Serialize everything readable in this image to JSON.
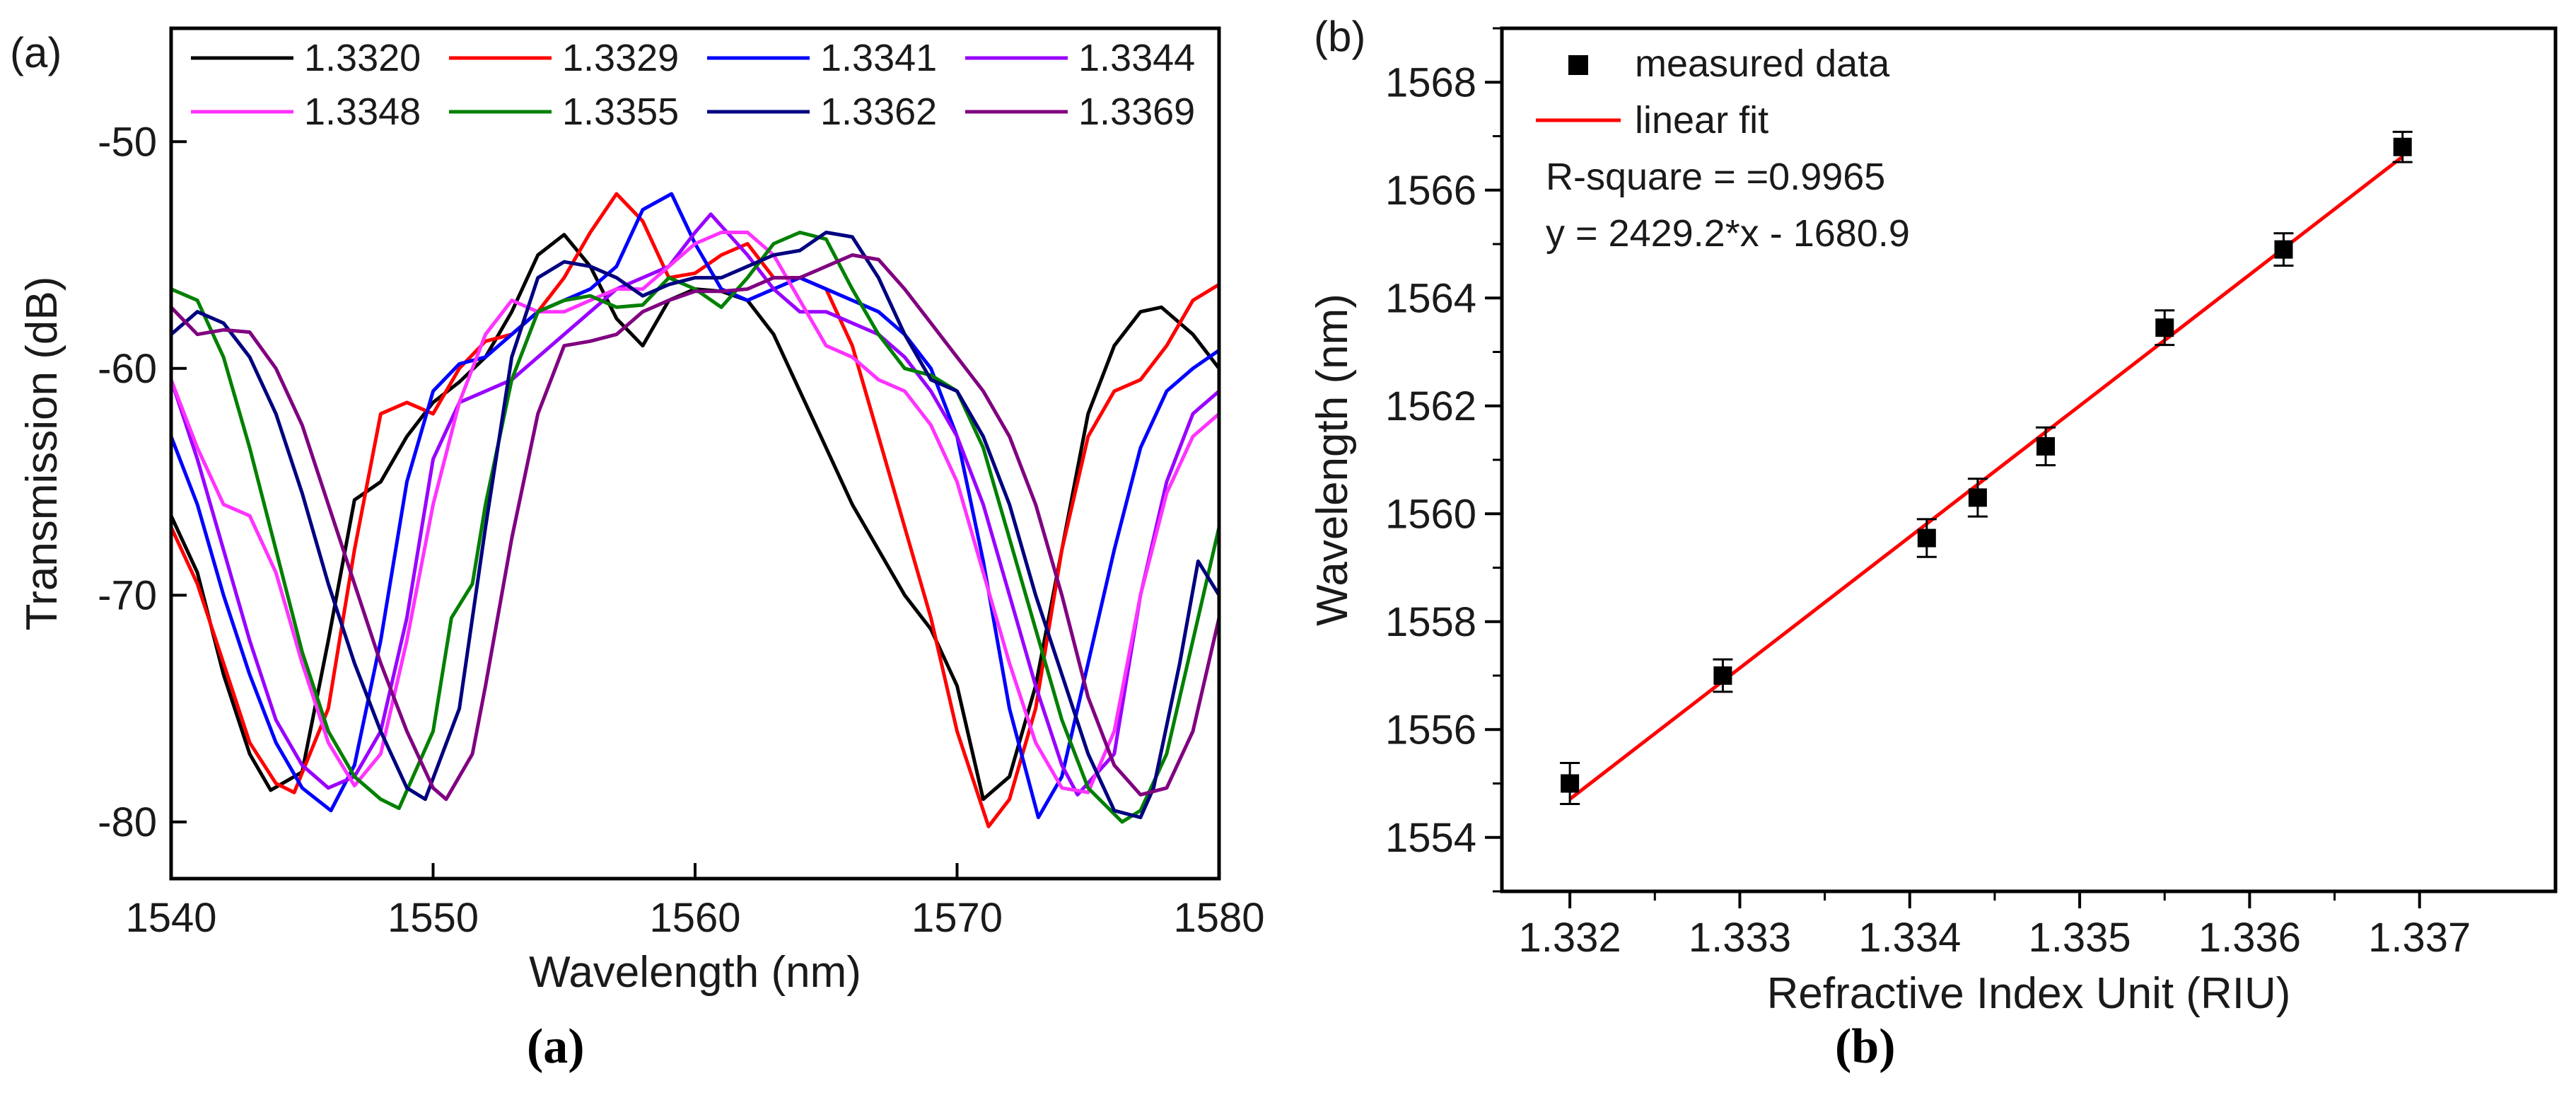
{
  "chart_data": [
    {
      "id": "a",
      "type": "line",
      "panel_label": "(a)",
      "title": "",
      "xlabel": "Wavelength (nm)",
      "ylabel": "Transmission (dB)",
      "xlim": [
        1540,
        1580
      ],
      "ylim": [
        -82.5,
        -45
      ],
      "xticks": [
        1540,
        1550,
        1560,
        1570,
        1580
      ],
      "yticks": [
        -80,
        -70,
        -60,
        -50
      ],
      "x_tick_labels": [
        "1540",
        "1550",
        "1560",
        "1570",
        "1580"
      ],
      "y_tick_labels": [
        "-80",
        "-70",
        "-60",
        "-50"
      ],
      "grid": false,
      "legend": "top, 4 columns",
      "series": [
        {
          "name": "1.3320",
          "color": "#000000",
          "x": [
            1540,
            1541,
            1542,
            1543,
            1543.8,
            1545,
            1546,
            1547,
            1548,
            1549,
            1550,
            1551,
            1552,
            1553,
            1554,
            1555,
            1556,
            1557,
            1558,
            1559,
            1560,
            1561,
            1562,
            1563,
            1564,
            1565,
            1566,
            1567,
            1568,
            1569,
            1570,
            1571,
            1572,
            1573,
            1574,
            1575,
            1576,
            1577,
            1577.8,
            1579,
            1580
          ],
          "y": [
            -66.5,
            -69,
            -73.5,
            -77,
            -78.6,
            -77.8,
            -72,
            -65.8,
            -65,
            -63,
            -61.5,
            -60.6,
            -59.5,
            -57.5,
            -55,
            -54.1,
            -55.5,
            -57.8,
            -59,
            -57,
            -56.5,
            -56.6,
            -57,
            -58.5,
            -61,
            -63.5,
            -66,
            -68,
            -70,
            -71.5,
            -74,
            -79,
            -78,
            -74,
            -68,
            -62,
            -59,
            -57.5,
            -57.3,
            -58.5,
            -60
          ]
        },
        {
          "name": "1.3329",
          "color": "#ff0000",
          "x": [
            1540,
            1541,
            1542,
            1543,
            1544,
            1544.7,
            1546,
            1547,
            1548,
            1549,
            1550,
            1551,
            1552,
            1553,
            1554,
            1555,
            1556,
            1557,
            1558,
            1559,
            1560,
            1561,
            1562,
            1563,
            1564,
            1565,
            1566,
            1567,
            1568,
            1569,
            1570,
            1571.2,
            1572,
            1573,
            1574,
            1575,
            1576,
            1577,
            1578,
            1579,
            1580
          ],
          "y": [
            -67,
            -69.5,
            -73,
            -76.5,
            -78.3,
            -78.7,
            -75,
            -68,
            -62,
            -61.5,
            -62,
            -60,
            -58.8,
            -58.5,
            -57.5,
            -56,
            -54,
            -52.3,
            -53.5,
            -56,
            -55.8,
            -55,
            -54.5,
            -56,
            -56,
            -56.5,
            -59,
            -63,
            -67,
            -71,
            -76,
            -80.2,
            -79,
            -75,
            -68,
            -63,
            -61,
            -60.5,
            -59,
            -57,
            -56.3
          ]
        },
        {
          "name": "1.3341",
          "color": "#0000ff",
          "x": [
            1540,
            1541,
            1542,
            1543,
            1544,
            1545,
            1546.1,
            1547,
            1548,
            1549,
            1550,
            1551,
            1552,
            1553,
            1554,
            1555,
            1556,
            1557,
            1558,
            1559.1,
            1560,
            1561,
            1562,
            1563,
            1564,
            1565,
            1566,
            1567,
            1568,
            1569,
            1570,
            1571,
            1572,
            1573.1,
            1574,
            1575,
            1576,
            1577,
            1578,
            1579,
            1580
          ],
          "y": [
            -63,
            -66,
            -70,
            -73.5,
            -76.5,
            -78.5,
            -79.5,
            -77.5,
            -72,
            -65,
            -61,
            -59.8,
            -59.5,
            -58.5,
            -57.5,
            -57,
            -56.5,
            -55.5,
            -53,
            -52.3,
            -54.5,
            -56.5,
            -57,
            -56.5,
            -56,
            -56.5,
            -57,
            -57.5,
            -58.5,
            -60,
            -63,
            -68.5,
            -75,
            -79.8,
            -78,
            -73,
            -68,
            -63.5,
            -61,
            -60,
            -59.2
          ]
        },
        {
          "name": "1.3344",
          "color": "#9900ff",
          "x": [
            1540,
            1541,
            1542,
            1543,
            1544,
            1545,
            1546,
            1547,
            1548,
            1549,
            1550,
            1551,
            1552,
            1553,
            1554,
            1555,
            1556,
            1557,
            1558,
            1559,
            1560,
            1560.6,
            1562,
            1563,
            1564,
            1565,
            1566,
            1567,
            1568,
            1569,
            1570,
            1571,
            1572,
            1573,
            1574,
            1574.6,
            1576,
            1577,
            1578,
            1579,
            1580
          ],
          "y": [
            -60.5,
            -64,
            -68,
            -72,
            -75.5,
            -77.5,
            -78.5,
            -78,
            -76,
            -71,
            -64,
            -61.5,
            -61,
            -60.5,
            -59.5,
            -58.5,
            -57.5,
            -56.5,
            -56,
            -55.5,
            -54,
            -53.2,
            -55,
            -56.5,
            -57.5,
            -57.5,
            -58,
            -58.5,
            -59.5,
            -61,
            -63,
            -66,
            -70,
            -74,
            -77.5,
            -78.8,
            -77,
            -70,
            -65,
            -62,
            -61
          ]
        },
        {
          "name": "1.3348",
          "color": "#ff33ff",
          "x": [
            1540,
            1541,
            1542,
            1543,
            1544,
            1545,
            1546,
            1547,
            1548,
            1549,
            1550,
            1551,
            1552,
            1553,
            1554,
            1555,
            1556,
            1557,
            1558,
            1559,
            1560,
            1561,
            1562,
            1563,
            1564,
            1565,
            1566,
            1567,
            1568,
            1569,
            1570,
            1571,
            1572,
            1573,
            1574,
            1575,
            1576,
            1577,
            1578,
            1579,
            1580
          ],
          "y": [
            -60.5,
            -63.5,
            -66,
            -66.5,
            -69,
            -73,
            -76.5,
            -78.4,
            -77,
            -72,
            -66,
            -61.5,
            -58.5,
            -57,
            -57.5,
            -57.5,
            -57,
            -56.5,
            -56.5,
            -55.5,
            -54.5,
            -54,
            -54,
            -55,
            -57,
            -59,
            -59.5,
            -60.5,
            -61,
            -62.5,
            -65,
            -69,
            -73,
            -76.5,
            -78.5,
            -78.7,
            -76,
            -70,
            -65.5,
            -63,
            -62
          ]
        },
        {
          "name": "1.3355",
          "color": "#008000",
          "x": [
            1540,
            1541,
            1542,
            1543,
            1544,
            1545,
            1546,
            1547,
            1548,
            1548.7,
            1550,
            1550.7,
            1551.5,
            1552,
            1553,
            1554,
            1555,
            1556,
            1557,
            1558,
            1559,
            1560,
            1561,
            1562,
            1563,
            1564,
            1565,
            1566,
            1567,
            1568,
            1569,
            1570,
            1571,
            1572,
            1573,
            1574,
            1575,
            1576.3,
            1577,
            1578,
            1579,
            1580
          ],
          "y": [
            -56.5,
            -57,
            -59.5,
            -63.5,
            -68,
            -72.5,
            -76,
            -78,
            -79,
            -79.4,
            -76,
            -71,
            -69.5,
            -66,
            -60.5,
            -57.5,
            -57,
            -56.8,
            -57.3,
            -57.2,
            -56,
            -56.5,
            -57.3,
            -56,
            -54.5,
            -54,
            -54.3,
            -56.5,
            -58.5,
            -60,
            -60.3,
            -61,
            -63.5,
            -67.5,
            -71.5,
            -75.5,
            -78.5,
            -80,
            -79.5,
            -77,
            -72,
            -67
          ]
        },
        {
          "name": "1.3362",
          "color": "#000080",
          "x": [
            1540,
            1541,
            1542,
            1543,
            1544,
            1545,
            1546,
            1547,
            1548,
            1549,
            1549.7,
            1551,
            1552,
            1553,
            1554,
            1555,
            1556,
            1557,
            1558,
            1559,
            1560,
            1561,
            1562,
            1563,
            1564,
            1565,
            1566,
            1567,
            1568,
            1569,
            1570,
            1571,
            1572,
            1573,
            1574,
            1575,
            1576,
            1577,
            1577.5,
            1578.5,
            1579.2,
            1580
          ],
          "y": [
            -58.5,
            -57.5,
            -58,
            -59.5,
            -62,
            -65.5,
            -69.5,
            -73,
            -76,
            -78.5,
            -79,
            -75,
            -67,
            -59.5,
            -56,
            -55.3,
            -55.5,
            -56,
            -56.8,
            -56.3,
            -56,
            -56,
            -55.5,
            -55,
            -54.8,
            -54,
            -54.2,
            -56,
            -58.5,
            -60.5,
            -61,
            -63,
            -66,
            -70,
            -73.5,
            -77,
            -79.5,
            -79.8,
            -78.5,
            -73,
            -68.5,
            -70
          ]
        },
        {
          "name": "1.3369",
          "color": "#800080",
          "x": [
            1540,
            1541,
            1542,
            1543,
            1544,
            1545,
            1546,
            1547,
            1548,
            1549,
            1550,
            1550.5,
            1551.5,
            1552,
            1553,
            1554,
            1555,
            1556,
            1557,
            1558,
            1559,
            1560,
            1561,
            1562,
            1563,
            1564,
            1565,
            1566,
            1567,
            1568,
            1569,
            1570,
            1571,
            1572,
            1573,
            1574,
            1575,
            1576,
            1577,
            1578,
            1579,
            1580
          ],
          "y": [
            -57.3,
            -58.5,
            -58.3,
            -58.4,
            -60,
            -62.5,
            -66,
            -69.5,
            -73,
            -76,
            -78.5,
            -79,
            -77,
            -74,
            -67.5,
            -62,
            -59,
            -58.8,
            -58.5,
            -57.5,
            -57,
            -56.6,
            -56.6,
            -56.5,
            -56,
            -56,
            -55.5,
            -55,
            -55.2,
            -56.5,
            -58,
            -59.5,
            -61,
            -63,
            -66,
            -70,
            -74.5,
            -77.5,
            -78.8,
            -78.5,
            -76,
            -71
          ]
        }
      ]
    },
    {
      "id": "b",
      "type": "scatter",
      "panel_label": "(b)",
      "title": "",
      "xlabel": "Refractive Index Unit (RIU)",
      "ylabel": "Wavelength (nm)",
      "xlim": [
        1.3316,
        1.3378
      ],
      "ylim": [
        1553,
        1569
      ],
      "xticks": [
        1.332,
        1.333,
        1.334,
        1.335,
        1.336,
        1.337
      ],
      "yticks": [
        1554,
        1556,
        1558,
        1560,
        1562,
        1564,
        1566,
        1568
      ],
      "x_tick_labels": [
        "1.332",
        "1.333",
        "1.334",
        "1.335",
        "1.336",
        "1.337"
      ],
      "y_tick_labels": [
        "1554",
        "1556",
        "1558",
        "1560",
        "1562",
        "1564",
        "1566",
        "1568"
      ],
      "grid": false,
      "legend": "top-left",
      "series": [
        {
          "name": "measured data",
          "kind": "scatter",
          "color": "#000000",
          "x": [
            1.332,
            1.3329,
            1.3341,
            1.3344,
            1.3348,
            1.3355,
            1.3362,
            1.3369
          ],
          "y": [
            1555.0,
            1557.0,
            1559.55,
            1560.3,
            1561.25,
            1563.45,
            1564.9,
            1566.8
          ],
          "error": [
            0.38,
            0.3,
            0.35,
            0.35,
            0.35,
            0.32,
            0.3,
            0.28
          ]
        },
        {
          "name": "linear fit",
          "kind": "line",
          "color": "#ff0000",
          "x": [
            1.332,
            1.3369
          ],
          "y": [
            1554.71,
            1566.62
          ]
        }
      ],
      "annotations": [
        "R-square = =0.9965",
        "y = 2429.2*x - 1680.9"
      ]
    }
  ],
  "captions": {
    "a": "(a)",
    "b": "(b)"
  }
}
